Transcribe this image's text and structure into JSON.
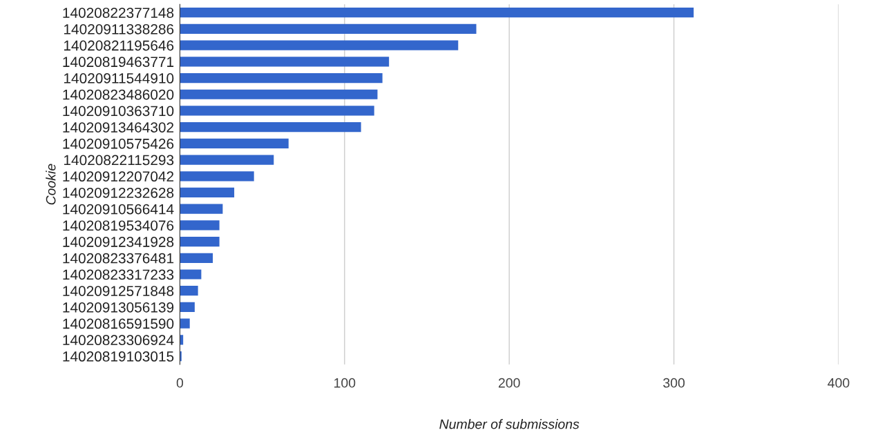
{
  "chart_data": {
    "type": "bar",
    "orientation": "horizontal",
    "xlabel": "Number of submissions",
    "ylabel": "Cookie",
    "categories": [
      "14020822377148",
      "14020911338286",
      "14020821195646",
      "14020819463771",
      "14020911544910",
      "14020823486020",
      "14020910363710",
      "14020913464302",
      "14020910575426",
      "14020822115293",
      "14020912207042",
      "14020912232628",
      "14020910566414",
      "14020819534076",
      "14020912341928",
      "14020823376481",
      "14020823317233",
      "14020912571848",
      "14020913056139",
      "14020816591590",
      "14020823306924",
      "14020819103015"
    ],
    "values": [
      312,
      180,
      169,
      127,
      123,
      120,
      118,
      110,
      66,
      57,
      45,
      33,
      26,
      24,
      24,
      20,
      13,
      11,
      9,
      6,
      2,
      1
    ],
    "color": "#3366cc",
    "xlim": [
      0,
      400
    ],
    "xticks": [
      0,
      100,
      200,
      300,
      400
    ],
    "grid": "x",
    "legend": false
  }
}
